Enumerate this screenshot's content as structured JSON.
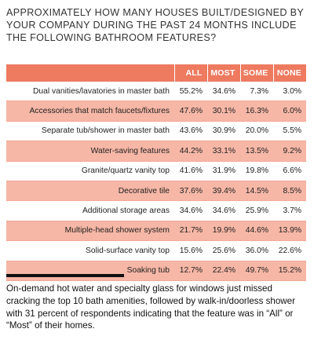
{
  "heading": "APPROXIMATELY HOW MANY HOUSES BUILT/DESIGNED BY YOUR COMPANY DURING THE PAST 24 MONTHS INCLUDE THE FOLLOWING BATHROOM FEATURES?",
  "chart_data": {
    "type": "table",
    "title": "APPROXIMATELY HOW MANY HOUSES BUILT/DESIGNED BY YOUR COMPANY DURING THE PAST 24 MONTHS INCLUDE THE FOLLOWING BATHROOM FEATURES?",
    "columns": [
      "ALL",
      "MOST",
      "SOME",
      "NONE"
    ],
    "rows": [
      {
        "label": "Dual vanities/lavatories in master bath",
        "values": [
          "55.2%",
          "34.6%",
          "7.3%",
          "3.0%"
        ]
      },
      {
        "label": "Accessories that match faucets/fixtures",
        "values": [
          "47.6%",
          "30.1%",
          "16.3%",
          "6.0%"
        ]
      },
      {
        "label": "Separate tub/shower in master bath",
        "values": [
          "43.6%",
          "30.9%",
          "20.0%",
          "5.5%"
        ]
      },
      {
        "label": "Water-saving features",
        "values": [
          "44.2%",
          "33.1%",
          "13.5%",
          "9.2%"
        ]
      },
      {
        "label": "Granite/quartz vanity top",
        "values": [
          "41.6%",
          "31.9%",
          "19.8%",
          "6.6%"
        ]
      },
      {
        "label": "Decorative tile",
        "values": [
          "37.6%",
          "39.4%",
          "14.5%",
          "8.5%"
        ]
      },
      {
        "label": "Additional storage areas",
        "values": [
          "34.6%",
          "34.6%",
          "25.9%",
          "3.7%"
        ]
      },
      {
        "label": "Multiple-head shower system",
        "values": [
          "21.7%",
          "19.9%",
          "44.6%",
          "13.9%"
        ]
      },
      {
        "label": "Solid-surface vanity top",
        "values": [
          "15.6%",
          "25.6%",
          "36.0%",
          "22.6%"
        ]
      },
      {
        "label": "Soaking tub",
        "values": [
          "12.7%",
          "22.4%",
          "49.7%",
          "15.2%"
        ]
      }
    ]
  },
  "colors": {
    "header_bg": "#ee7a60",
    "shade_row": "#f6b7a6",
    "rule": "#111111"
  },
  "caption": "On-demand hot water and specialty glass for windows just missed cracking the top 10 bath amenities, followed by walk-in/doorless shower with 31 percent of respondents indicating that the feature was in “All” or “Most” of their homes."
}
